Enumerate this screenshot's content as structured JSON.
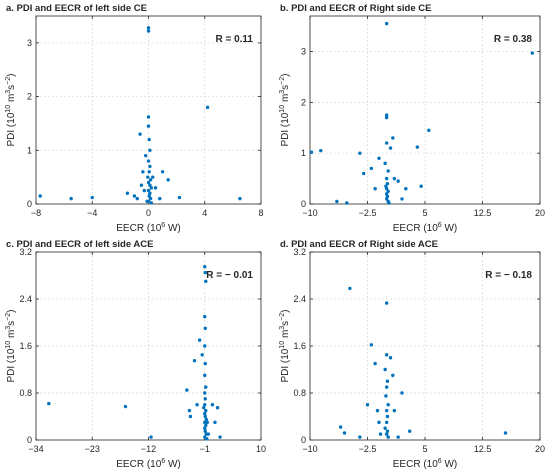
{
  "chart_data": [
    {
      "type": "scatter",
      "title": "a. PDI and EECR of left side CE",
      "annotation": "R = 0.11",
      "xlabel": "EECR (10",
      "xlabel_sup": "6",
      "xlabel_tail": " W)",
      "ylabel": "PDI (10",
      "ylabel_sup1": "10",
      "ylabel_mid": " m",
      "ylabel_sup2": "3",
      "ylabel_mid2": "s",
      "ylabel_sup3": "−2",
      "ylabel_tail": ")",
      "xlim": [
        -8,
        8
      ],
      "ylim": [
        0,
        3.5
      ],
      "xticks": [
        -8,
        -4,
        0,
        4,
        8
      ],
      "xtick_labels": [
        "−8",
        "−4",
        "0",
        "4",
        "8"
      ],
      "yticks": [
        0,
        1,
        2,
        3
      ],
      "ytick_labels": [
        "0",
        "1",
        "2",
        "3"
      ],
      "grid": true,
      "points": [
        [
          -7.7,
          0.15
        ],
        [
          -5.5,
          0.1
        ],
        [
          -4.0,
          0.12
        ],
        [
          -1.5,
          0.2
        ],
        [
          -1.0,
          0.15
        ],
        [
          -0.8,
          0.1
        ],
        [
          -0.6,
          1.3
        ],
        [
          -0.5,
          0.35
        ],
        [
          -0.4,
          0.6
        ],
        [
          -0.3,
          0.25
        ],
        [
          -0.2,
          0.9
        ],
        [
          -0.1,
          0.05
        ],
        [
          0.0,
          3.28
        ],
        [
          0.0,
          3.22
        ],
        [
          0.0,
          1.62
        ],
        [
          0.0,
          1.45
        ],
        [
          0.05,
          1.2
        ],
        [
          0.1,
          1.0
        ],
        [
          0.0,
          0.8
        ],
        [
          0.1,
          0.7
        ],
        [
          0.05,
          0.6
        ],
        [
          -0.05,
          0.5
        ],
        [
          0.15,
          0.45
        ],
        [
          0.0,
          0.4
        ],
        [
          0.1,
          0.35
        ],
        [
          0.2,
          0.3
        ],
        [
          0.0,
          0.25
        ],
        [
          0.1,
          0.2
        ],
        [
          0.05,
          0.15
        ],
        [
          0.15,
          0.1
        ],
        [
          0.0,
          0.05
        ],
        [
          0.2,
          0.02
        ],
        [
          0.3,
          0.5
        ],
        [
          0.5,
          0.3
        ],
        [
          0.8,
          0.1
        ],
        [
          1.0,
          0.6
        ],
        [
          1.4,
          0.45
        ],
        [
          2.2,
          0.12
        ],
        [
          4.2,
          1.8
        ],
        [
          6.5,
          0.1
        ]
      ]
    },
    {
      "type": "scatter",
      "title": "b. PDI and EECR of Right side CE",
      "annotation": "R = 0.38",
      "xlabel": "EECR (10",
      "xlabel_sup": "6",
      "xlabel_tail": " W)",
      "ylabel": "PDI (10",
      "ylabel_sup1": "10",
      "ylabel_mid": " m",
      "ylabel_sup2": "3",
      "ylabel_mid2": "s",
      "ylabel_sup3": "−2",
      "ylabel_tail": ")",
      "xlim": [
        -10,
        20
      ],
      "ylim": [
        0,
        3.7
      ],
      "xticks": [
        -10,
        -2.5,
        5,
        12.5,
        20
      ],
      "xtick_labels": [
        "−10",
        "−2.5",
        "5",
        "12.5",
        "20"
      ],
      "yticks": [
        0,
        1,
        2,
        3
      ],
      "ytick_labels": [
        "0",
        "1",
        "2",
        "3"
      ],
      "grid": true,
      "points": [
        [
          -9.8,
          1.02
        ],
        [
          -8.6,
          1.05
        ],
        [
          -6.5,
          0.05
        ],
        [
          -5.2,
          0.02
        ],
        [
          -3.5,
          1.0
        ],
        [
          -3.0,
          0.6
        ],
        [
          -2.0,
          0.7
        ],
        [
          -1.5,
          0.3
        ],
        [
          -1.0,
          0.9
        ],
        [
          0.0,
          3.55
        ],
        [
          0.0,
          1.75
        ],
        [
          0.0,
          1.7
        ],
        [
          0.0,
          1.2
        ],
        [
          -0.2,
          0.8
        ],
        [
          0.2,
          0.65
        ],
        [
          0.0,
          0.5
        ],
        [
          0.1,
          0.4
        ],
        [
          -0.1,
          0.35
        ],
        [
          0.0,
          0.3
        ],
        [
          0.2,
          0.25
        ],
        [
          0.0,
          0.2
        ],
        [
          0.1,
          0.15
        ],
        [
          0.0,
          0.1
        ],
        [
          0.2,
          0.05
        ],
        [
          0.3,
          0.02
        ],
        [
          0.5,
          1.1
        ],
        [
          0.8,
          1.3
        ],
        [
          1.0,
          0.5
        ],
        [
          1.5,
          0.45
        ],
        [
          2.0,
          0.1
        ],
        [
          2.5,
          0.3
        ],
        [
          4.0,
          1.12
        ],
        [
          4.5,
          0.35
        ],
        [
          5.5,
          1.45
        ],
        [
          19.0,
          2.97
        ]
      ]
    },
    {
      "type": "scatter",
      "title": "c. PDI and EECR of left side ACE",
      "annotation": "R = − 0.01",
      "xlabel": "EECR (10",
      "xlabel_sup": "6",
      "xlabel_tail": " W)",
      "ylabel": "PDI (10",
      "ylabel_sup1": "10",
      "ylabel_mid": " m",
      "ylabel_sup2": "3",
      "ylabel_mid2": "s",
      "ylabel_sup3": "−2",
      "ylabel_tail": ")",
      "xlim": [
        -34,
        10
      ],
      "ylim": [
        0,
        3.2
      ],
      "xticks": [
        -34,
        -23,
        -12,
        -1,
        10
      ],
      "xtick_labels": [
        "−34",
        "−23",
        "−12",
        "−1",
        "10"
      ],
      "yticks": [
        0,
        0.8,
        1.6,
        2.4,
        3.2
      ],
      "ytick_labels": [
        "0",
        "0.8",
        "1.6",
        "2.4",
        "3.2"
      ],
      "grid": true,
      "points": [
        [
          -31.5,
          0.62
        ],
        [
          -16.5,
          0.57
        ],
        [
          -11.5,
          0.05
        ],
        [
          -4.5,
          0.85
        ],
        [
          -4.0,
          0.5
        ],
        [
          -3.8,
          0.4
        ],
        [
          -3.0,
          1.35
        ],
        [
          -2.5,
          0.6
        ],
        [
          -2.0,
          1.7
        ],
        [
          -1.5,
          1.45
        ],
        [
          -1.2,
          0.55
        ],
        [
          -1.0,
          2.95
        ],
        [
          -0.9,
          2.85
        ],
        [
          -0.8,
          2.7
        ],
        [
          -1.0,
          2.1
        ],
        [
          -0.9,
          1.9
        ],
        [
          -1.0,
          1.6
        ],
        [
          -0.9,
          1.3
        ],
        [
          -1.0,
          1.1
        ],
        [
          -0.8,
          0.9
        ],
        [
          -1.0,
          0.8
        ],
        [
          -0.9,
          0.7
        ],
        [
          -1.0,
          0.6
        ],
        [
          -0.8,
          0.5
        ],
        [
          -1.0,
          0.45
        ],
        [
          -0.9,
          0.4
        ],
        [
          -0.7,
          0.35
        ],
        [
          -1.0,
          0.3
        ],
        [
          -0.8,
          0.25
        ],
        [
          -1.0,
          0.2
        ],
        [
          -0.9,
          0.15
        ],
        [
          -0.7,
          0.1
        ],
        [
          -1.0,
          0.05
        ],
        [
          -0.6,
          0.02
        ],
        [
          -0.5,
          0.3
        ],
        [
          -0.3,
          0.1
        ],
        [
          0.5,
          0.6
        ],
        [
          1.0,
          0.3
        ],
        [
          1.5,
          0.55
        ],
        [
          2.0,
          0.05
        ]
      ]
    },
    {
      "type": "scatter",
      "title": "d. PDI and EECR of Right side ACE",
      "annotation": "R = − 0.18",
      "xlabel": "EECR (10",
      "xlabel_sup": "6",
      "xlabel_tail": " W)",
      "ylabel": "PDI (10",
      "ylabel_sup1": "10",
      "ylabel_mid": " m",
      "ylabel_sup2": "3",
      "ylabel_mid2": "s",
      "ylabel_sup3": "−2",
      "ylabel_tail": ")",
      "xlim": [
        -10,
        20
      ],
      "ylim": [
        0,
        3.2
      ],
      "xticks": [
        -10,
        -2.5,
        5,
        12.5,
        20
      ],
      "xtick_labels": [
        "−10",
        "−2.5",
        "5",
        "12.5",
        "20"
      ],
      "yticks": [
        0,
        0.8,
        1.6,
        2.4,
        3.2
      ],
      "ytick_labels": [
        "0",
        "0.8",
        "1.6",
        "2.4",
        "3.2"
      ],
      "grid": true,
      "points": [
        [
          -6.0,
          0.22
        ],
        [
          -5.5,
          0.12
        ],
        [
          -4.8,
          2.58
        ],
        [
          -3.5,
          0.05
        ],
        [
          -2.5,
          0.6
        ],
        [
          -2.0,
          1.62
        ],
        [
          -1.5,
          1.3
        ],
        [
          -1.2,
          0.5
        ],
        [
          -1.0,
          0.3
        ],
        [
          -0.8,
          0.1
        ],
        [
          0.0,
          2.33
        ],
        [
          0.0,
          1.45
        ],
        [
          -0.2,
          1.2
        ],
        [
          0.1,
          1.0
        ],
        [
          0.0,
          0.9
        ],
        [
          -0.1,
          0.75
        ],
        [
          0.2,
          0.6
        ],
        [
          0.0,
          0.5
        ],
        [
          0.1,
          0.4
        ],
        [
          0.0,
          0.3
        ],
        [
          -0.2,
          0.2
        ],
        [
          0.1,
          0.15
        ],
        [
          0.0,
          0.1
        ],
        [
          0.2,
          0.05
        ],
        [
          0.5,
          1.4
        ],
        [
          0.8,
          1.1
        ],
        [
          1.0,
          0.5
        ],
        [
          1.5,
          0.05
        ],
        [
          2.0,
          0.8
        ],
        [
          3.0,
          0.15
        ],
        [
          15.5,
          0.12
        ]
      ]
    }
  ]
}
